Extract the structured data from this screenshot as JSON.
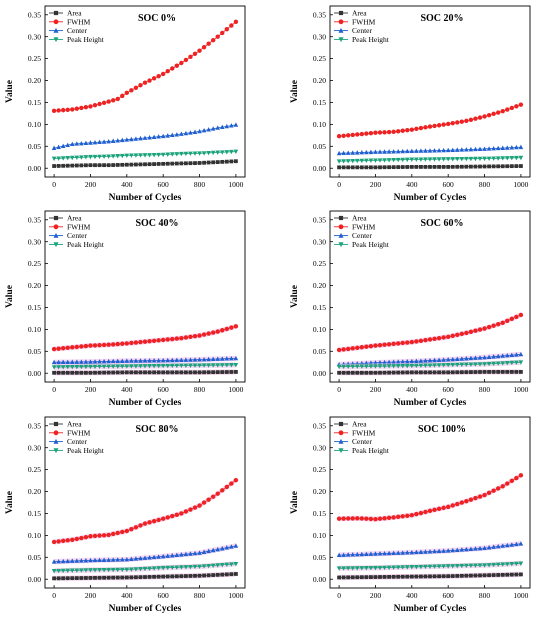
{
  "colors": {
    "Area": "#333333",
    "FWHM": "#ee2222",
    "Center": "#1f5fd0",
    "Peak Height": "#1aa37a",
    "band": "#f4c8f0"
  },
  "chart_data": [
    {
      "type": "line",
      "title": "SOC 0%",
      "xlabel": "Number of Cycles",
      "ylabel": "Value",
      "xlim": [
        -50,
        1050
      ],
      "ylim": [
        -0.02,
        0.37
      ],
      "xticks": [
        "0",
        "200",
        "400",
        "600",
        "800",
        "1000"
      ],
      "yticks": [
        "0.00",
        "0.05",
        "0.10",
        "0.15",
        "0.20",
        "0.25",
        "0.30",
        "0.35"
      ],
      "legend": "top-left",
      "series": [
        {
          "name": "Area",
          "marker": "square",
          "band": false,
          "points": [
            [
              0,
              0.005
            ],
            [
              100,
              0.006
            ],
            [
              200,
              0.007
            ],
            [
              300,
              0.007
            ],
            [
              400,
              0.008
            ],
            [
              500,
              0.009
            ],
            [
              600,
              0.01
            ],
            [
              700,
              0.011
            ],
            [
              800,
              0.012
            ],
            [
              900,
              0.014
            ],
            [
              1000,
              0.016
            ]
          ]
        },
        {
          "name": "FWHM",
          "marker": "circle",
          "band": false,
          "points": [
            [
              0,
              0.131
            ],
            [
              100,
              0.134
            ],
            [
              200,
              0.141
            ],
            [
              300,
              0.152
            ],
            [
              350,
              0.158
            ],
            [
              400,
              0.172
            ],
            [
              500,
              0.195
            ],
            [
              600,
              0.215
            ],
            [
              700,
              0.24
            ],
            [
              800,
              0.268
            ],
            [
              900,
              0.3
            ],
            [
              1000,
              0.334
            ]
          ]
        },
        {
          "name": "Center",
          "marker": "triangle-up",
          "band": false,
          "points": [
            [
              0,
              0.046
            ],
            [
              100,
              0.055
            ],
            [
              200,
              0.058
            ],
            [
              300,
              0.061
            ],
            [
              400,
              0.065
            ],
            [
              500,
              0.069
            ],
            [
              600,
              0.073
            ],
            [
              700,
              0.078
            ],
            [
              800,
              0.084
            ],
            [
              900,
              0.092
            ],
            [
              1000,
              0.099
            ]
          ]
        },
        {
          "name": "Peak Height",
          "marker": "triangle-down",
          "band": false,
          "points": [
            [
              0,
              0.022
            ],
            [
              100,
              0.024
            ],
            [
              200,
              0.026
            ],
            [
              300,
              0.027
            ],
            [
              400,
              0.029
            ],
            [
              500,
              0.03
            ],
            [
              600,
              0.031
            ],
            [
              700,
              0.033
            ],
            [
              800,
              0.034
            ],
            [
              900,
              0.036
            ],
            [
              1000,
              0.038
            ]
          ]
        }
      ]
    },
    {
      "type": "line",
      "title": "SOC 20%",
      "xlabel": "Number of Cycles",
      "ylabel": "Value",
      "xlim": [
        -50,
        1050
      ],
      "ylim": [
        -0.02,
        0.37
      ],
      "xticks": [
        "0",
        "200",
        "400",
        "600",
        "800",
        "1000"
      ],
      "yticks": [
        "0.00",
        "0.05",
        "0.10",
        "0.15",
        "0.20",
        "0.25",
        "0.30",
        "0.35"
      ],
      "legend": "top-left",
      "series": [
        {
          "name": "Area",
          "marker": "square",
          "band": false,
          "points": [
            [
              0,
              0.002
            ],
            [
              200,
              0.002
            ],
            [
              400,
              0.003
            ],
            [
              600,
              0.003
            ],
            [
              800,
              0.004
            ],
            [
              1000,
              0.005
            ]
          ]
        },
        {
          "name": "FWHM",
          "marker": "circle",
          "band": false,
          "points": [
            [
              0,
              0.073
            ],
            [
              100,
              0.077
            ],
            [
              200,
              0.081
            ],
            [
              300,
              0.083
            ],
            [
              400,
              0.088
            ],
            [
              500,
              0.095
            ],
            [
              600,
              0.101
            ],
            [
              700,
              0.108
            ],
            [
              800,
              0.118
            ],
            [
              900,
              0.13
            ],
            [
              1000,
              0.145
            ]
          ]
        },
        {
          "name": "Center",
          "marker": "triangle-up",
          "band": false,
          "points": [
            [
              0,
              0.034
            ],
            [
              200,
              0.037
            ],
            [
              400,
              0.039
            ],
            [
              600,
              0.041
            ],
            [
              800,
              0.044
            ],
            [
              1000,
              0.048
            ]
          ]
        },
        {
          "name": "Peak Height",
          "marker": "triangle-down",
          "band": false,
          "points": [
            [
              0,
              0.016
            ],
            [
              200,
              0.018
            ],
            [
              400,
              0.02
            ],
            [
              600,
              0.021
            ],
            [
              800,
              0.022
            ],
            [
              1000,
              0.024
            ]
          ]
        }
      ]
    },
    {
      "type": "line",
      "title": "SOC 40%",
      "xlabel": "Number of Cycles",
      "ylabel": "Value",
      "xlim": [
        -50,
        1050
      ],
      "ylim": [
        -0.02,
        0.37
      ],
      "xticks": [
        "0",
        "200",
        "400",
        "600",
        "800",
        "1000"
      ],
      "yticks": [
        "0.00",
        "0.05",
        "0.10",
        "0.15",
        "0.20",
        "0.25",
        "0.30",
        "0.35"
      ],
      "legend": "top-left",
      "series": [
        {
          "name": "Area",
          "marker": "square",
          "band": true,
          "points": [
            [
              0,
              0.001
            ],
            [
              200,
              0.001
            ],
            [
              400,
              0.002
            ],
            [
              600,
              0.002
            ],
            [
              800,
              0.002
            ],
            [
              1000,
              0.003
            ]
          ]
        },
        {
          "name": "FWHM",
          "marker": "circle",
          "band": true,
          "points": [
            [
              0,
              0.055
            ],
            [
              100,
              0.059
            ],
            [
              200,
              0.063
            ],
            [
              300,
              0.065
            ],
            [
              400,
              0.068
            ],
            [
              500,
              0.072
            ],
            [
              600,
              0.076
            ],
            [
              700,
              0.08
            ],
            [
              800,
              0.086
            ],
            [
              900,
              0.095
            ],
            [
              1000,
              0.107
            ]
          ]
        },
        {
          "name": "Center",
          "marker": "triangle-up",
          "band": true,
          "points": [
            [
              0,
              0.025
            ],
            [
              200,
              0.026
            ],
            [
              400,
              0.028
            ],
            [
              600,
              0.029
            ],
            [
              800,
              0.031
            ],
            [
              1000,
              0.034
            ]
          ]
        },
        {
          "name": "Peak Height",
          "marker": "triangle-down",
          "band": true,
          "points": [
            [
              0,
              0.014
            ],
            [
              200,
              0.015
            ],
            [
              400,
              0.016
            ],
            [
              600,
              0.017
            ],
            [
              800,
              0.018
            ],
            [
              1000,
              0.019
            ]
          ]
        }
      ]
    },
    {
      "type": "line",
      "title": "SOC 60%",
      "xlabel": "Number of Cycles",
      "ylabel": "Value",
      "xlim": [
        -50,
        1050
      ],
      "ylim": [
        -0.02,
        0.37
      ],
      "xticks": [
        "0",
        "200",
        "400",
        "600",
        "800",
        "1000"
      ],
      "yticks": [
        "0.00",
        "0.05",
        "0.10",
        "0.15",
        "0.20",
        "0.25",
        "0.30",
        "0.35"
      ],
      "legend": "top-left",
      "series": [
        {
          "name": "Area",
          "marker": "square",
          "band": true,
          "points": [
            [
              0,
              0.001
            ],
            [
              200,
              0.001
            ],
            [
              400,
              0.002
            ],
            [
              600,
              0.002
            ],
            [
              800,
              0.003
            ],
            [
              1000,
              0.003
            ]
          ]
        },
        {
          "name": "FWHM",
          "marker": "circle",
          "band": true,
          "points": [
            [
              0,
              0.053
            ],
            [
              100,
              0.058
            ],
            [
              200,
              0.063
            ],
            [
              300,
              0.067
            ],
            [
              400,
              0.071
            ],
            [
              500,
              0.077
            ],
            [
              600,
              0.083
            ],
            [
              700,
              0.092
            ],
            [
              800,
              0.102
            ],
            [
              900,
              0.115
            ],
            [
              1000,
              0.133
            ]
          ]
        },
        {
          "name": "Center",
          "marker": "triangle-up",
          "band": true,
          "points": [
            [
              0,
              0.02
            ],
            [
              200,
              0.024
            ],
            [
              400,
              0.027
            ],
            [
              600,
              0.031
            ],
            [
              800,
              0.036
            ],
            [
              1000,
              0.043
            ]
          ]
        },
        {
          "name": "Peak Height",
          "marker": "triangle-down",
          "band": true,
          "points": [
            [
              0,
              0.015
            ],
            [
              200,
              0.016
            ],
            [
              400,
              0.017
            ],
            [
              600,
              0.019
            ],
            [
              800,
              0.021
            ],
            [
              1000,
              0.025
            ]
          ]
        }
      ]
    },
    {
      "type": "line",
      "title": "SOC 80%",
      "xlabel": "Number of Cycles",
      "ylabel": "Value",
      "xlim": [
        -50,
        1050
      ],
      "ylim": [
        -0.02,
        0.37
      ],
      "xticks": [
        "0",
        "200",
        "400",
        "600",
        "800",
        "1000"
      ],
      "yticks": [
        "0.00",
        "0.05",
        "0.10",
        "0.15",
        "0.20",
        "0.25",
        "0.30",
        "0.35"
      ],
      "legend": "top-left",
      "series": [
        {
          "name": "Area",
          "marker": "square",
          "band": true,
          "points": [
            [
              0,
              0.002
            ],
            [
              200,
              0.003
            ],
            [
              400,
              0.004
            ],
            [
              600,
              0.006
            ],
            [
              800,
              0.008
            ],
            [
              1000,
              0.012
            ]
          ]
        },
        {
          "name": "FWHM",
          "marker": "circle",
          "band": true,
          "points": [
            [
              0,
              0.085
            ],
            [
              100,
              0.09
            ],
            [
              200,
              0.098
            ],
            [
              300,
              0.101
            ],
            [
              400,
              0.11
            ],
            [
              500,
              0.127
            ],
            [
              600,
              0.138
            ],
            [
              700,
              0.15
            ],
            [
              800,
              0.168
            ],
            [
              900,
              0.195
            ],
            [
              1000,
              0.226
            ]
          ]
        },
        {
          "name": "Center",
          "marker": "triangle-up",
          "band": true,
          "points": [
            [
              0,
              0.04
            ],
            [
              200,
              0.043
            ],
            [
              400,
              0.045
            ],
            [
              600,
              0.052
            ],
            [
              800,
              0.06
            ],
            [
              1000,
              0.076
            ]
          ]
        },
        {
          "name": "Peak Height",
          "marker": "triangle-down",
          "band": true,
          "points": [
            [
              0,
              0.019
            ],
            [
              200,
              0.021
            ],
            [
              400,
              0.022
            ],
            [
              600,
              0.026
            ],
            [
              800,
              0.029
            ],
            [
              1000,
              0.035
            ]
          ]
        }
      ]
    },
    {
      "type": "line",
      "title": "SOC 100%",
      "xlabel": "Number of Cycles",
      "ylabel": "Value",
      "xlim": [
        -50,
        1050
      ],
      "ylim": [
        -0.02,
        0.37
      ],
      "xticks": [
        "0",
        "200",
        "400",
        "600",
        "800",
        "1000"
      ],
      "yticks": [
        "0.00",
        "0.05",
        "0.10",
        "0.15",
        "0.20",
        "0.25",
        "0.30",
        "0.35"
      ],
      "legend": "top-left",
      "series": [
        {
          "name": "Area",
          "marker": "square",
          "band": true,
          "points": [
            [
              0,
              0.004
            ],
            [
              200,
              0.005
            ],
            [
              400,
              0.006
            ],
            [
              600,
              0.007
            ],
            [
              800,
              0.009
            ],
            [
              1000,
              0.011
            ]
          ]
        },
        {
          "name": "FWHM",
          "marker": "circle",
          "band": true,
          "points": [
            [
              0,
              0.138
            ],
            [
              100,
              0.139
            ],
            [
              200,
              0.137
            ],
            [
              300,
              0.141
            ],
            [
              400,
              0.146
            ],
            [
              500,
              0.156
            ],
            [
              600,
              0.165
            ],
            [
              700,
              0.178
            ],
            [
              800,
              0.192
            ],
            [
              900,
              0.212
            ],
            [
              1000,
              0.237
            ]
          ]
        },
        {
          "name": "Center",
          "marker": "triangle-up",
          "band": true,
          "points": [
            [
              0,
              0.055
            ],
            [
              200,
              0.058
            ],
            [
              400,
              0.061
            ],
            [
              600,
              0.065
            ],
            [
              800,
              0.071
            ],
            [
              1000,
              0.081
            ]
          ]
        },
        {
          "name": "Peak Height",
          "marker": "triangle-down",
          "band": true,
          "points": [
            [
              0,
              0.025
            ],
            [
              200,
              0.026
            ],
            [
              400,
              0.028
            ],
            [
              600,
              0.03
            ],
            [
              800,
              0.032
            ],
            [
              1000,
              0.036
            ]
          ]
        }
      ]
    }
  ]
}
